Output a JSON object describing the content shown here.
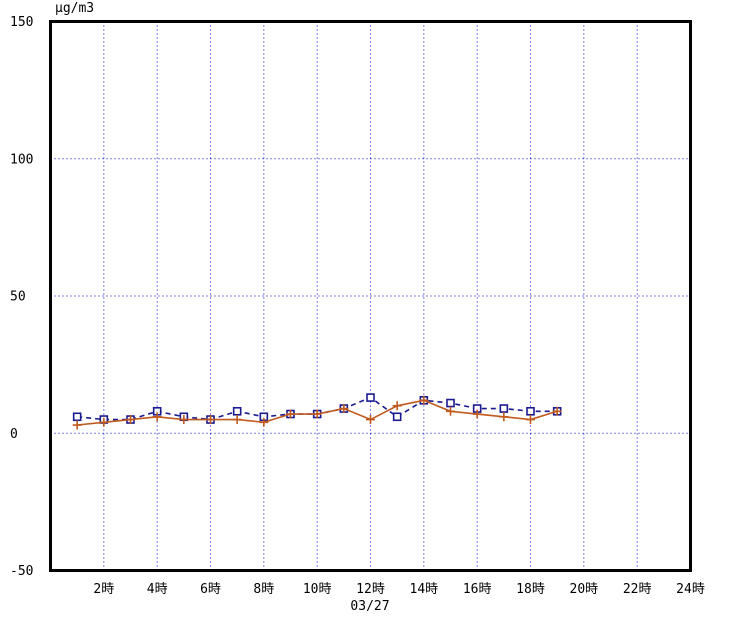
{
  "chart_data": {
    "type": "line",
    "title": "",
    "ylabel": "μg/m3",
    "xlabel": "",
    "date_label": "03/27",
    "xlim": [
      0,
      24
    ],
    "ylim": [
      -50,
      150
    ],
    "grid": true,
    "grid_color": "#0000cc",
    "axis_color": "#000000",
    "background_color": "#ffffff",
    "legend_position": "none",
    "x_hours": [
      1,
      2,
      3,
      4,
      5,
      6,
      7,
      8,
      9,
      10,
      11,
      12,
      13,
      14,
      15,
      16,
      17,
      18,
      19
    ],
    "x_ticks": [
      {
        "hour": 2,
        "label": "2時"
      },
      {
        "hour": 4,
        "label": "4時"
      },
      {
        "hour": 6,
        "label": "6時"
      },
      {
        "hour": 8,
        "label": "8時"
      },
      {
        "hour": 10,
        "label": "10時"
      },
      {
        "hour": 12,
        "label": "12時"
      },
      {
        "hour": 14,
        "label": "14時"
      },
      {
        "hour": 16,
        "label": "16時"
      },
      {
        "hour": 18,
        "label": "18時"
      },
      {
        "hour": 20,
        "label": "20時"
      },
      {
        "hour": 22,
        "label": "22時"
      },
      {
        "hour": 24,
        "label": "24時"
      }
    ],
    "y_ticks": [
      {
        "value": 150,
        "label": "150"
      },
      {
        "value": 100,
        "label": "100"
      },
      {
        "value": 50,
        "label": "50"
      },
      {
        "value": 0,
        "label": "0"
      },
      {
        "value": -50,
        "label": "-50"
      }
    ],
    "series": [
      {
        "name": "series-square-dashed",
        "color": "#1a1a90",
        "line_style": "dashed",
        "marker": "square",
        "values": [
          6,
          5,
          5,
          8,
          6,
          5,
          8,
          6,
          7,
          7,
          9,
          13,
          6,
          12,
          11,
          9,
          9,
          8,
          8
        ]
      },
      {
        "name": "series-plus-solid",
        "color": "#c05a1e",
        "line_style": "solid",
        "marker": "plus",
        "values": [
          3,
          4,
          5,
          6,
          5,
          5,
          5,
          4,
          7,
          7,
          9,
          5,
          10,
          12,
          8,
          7,
          6,
          5,
          8
        ]
      }
    ]
  }
}
